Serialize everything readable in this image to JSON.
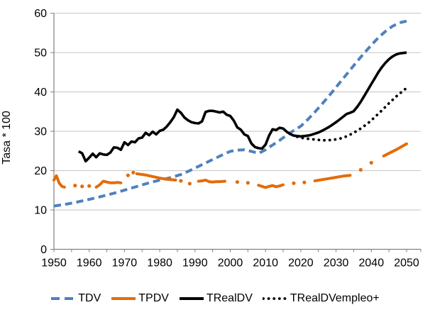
{
  "chart_data": {
    "type": "line",
    "title": "",
    "xlabel": "",
    "ylabel": "Tasa * 100",
    "xlim": [
      1950,
      2054
    ],
    "ylim": [
      0,
      60
    ],
    "grid": "horizontal-gridlines-every-10",
    "legend_position": "bottom",
    "colors": {
      "blue": "#4F81BD",
      "orange": "#E36C09",
      "black": "#000000",
      "grid": "#C3C3C3",
      "axis": "#808080",
      "text": "#000000"
    },
    "y_ticks": [
      "0",
      "10",
      "20",
      "30",
      "40",
      "50",
      "60"
    ],
    "x_ticks": [
      "1950",
      "1960",
      "1970",
      "1980",
      "1990",
      "2000",
      "2010",
      "2020",
      "2030",
      "2040",
      "2050"
    ],
    "series": [
      {
        "name": "TDV",
        "color": "#4F81BD",
        "style": "dashed",
        "width": 4,
        "points": [
          [
            1950,
            11.0
          ],
          [
            1953,
            11.4
          ],
          [
            1956,
            11.9
          ],
          [
            1959,
            12.5
          ],
          [
            1962,
            13.1
          ],
          [
            1965,
            13.8
          ],
          [
            1968,
            14.5
          ],
          [
            1971,
            15.3
          ],
          [
            1974,
            16.1
          ],
          [
            1977,
            16.9
          ],
          [
            1980,
            17.6
          ],
          [
            1983,
            18.2
          ],
          [
            1986,
            19.0
          ],
          [
            1989,
            20.2
          ],
          [
            1992,
            21.5
          ],
          [
            1995,
            22.8
          ],
          [
            1998,
            24.1
          ],
          [
            2000,
            24.9
          ],
          [
            2002,
            25.2
          ],
          [
            2004,
            25.3
          ],
          [
            2006,
            24.9
          ],
          [
            2008,
            24.4
          ],
          [
            2010,
            25.3
          ],
          [
            2012,
            26.5
          ],
          [
            2014,
            27.7
          ],
          [
            2016,
            29.0
          ],
          [
            2018,
            30.2
          ],
          [
            2020,
            31.3
          ],
          [
            2022,
            33.0
          ],
          [
            2024,
            34.9
          ],
          [
            2026,
            36.9
          ],
          [
            2028,
            39.0
          ],
          [
            2030,
            41.2
          ],
          [
            2032,
            43.4
          ],
          [
            2034,
            45.6
          ],
          [
            2036,
            47.8
          ],
          [
            2038,
            49.9
          ],
          [
            2040,
            51.9
          ],
          [
            2042,
            53.8
          ],
          [
            2044,
            55.4
          ],
          [
            2046,
            56.7
          ],
          [
            2048,
            57.6
          ],
          [
            2050,
            58.0
          ]
        ]
      },
      {
        "name": "TPDV",
        "color": "#E36C09",
        "style": "segments-with-dots",
        "width": 4,
        "segments": [
          [
            [
              1950,
              17.6
            ],
            [
              1950.7,
              18.7
            ],
            [
              1951.5,
              16.8
            ],
            [
              1952.3,
              16.0
            ],
            [
              1953,
              15.8
            ]
          ],
          [
            [
              1962,
              15.8
            ],
            [
              1963,
              16.4
            ],
            [
              1964,
              17.3
            ],
            [
              1965,
              17.1
            ],
            [
              1966,
              16.9
            ],
            [
              1967,
              16.9
            ],
            [
              1968,
              17.0
            ],
            [
              1969,
              16.9
            ]
          ],
          [
            [
              1973.5,
              19.2
            ],
            [
              1976,
              18.9
            ],
            [
              1978,
              18.5
            ],
            [
              1980,
              18.1
            ],
            [
              1982,
              17.8
            ],
            [
              1984.5,
              17.6
            ]
          ],
          [
            [
              1991,
              17.3
            ],
            [
              1992,
              17.4
            ],
            [
              1993,
              17.6
            ],
            [
              1994,
              17.2
            ],
            [
              1995,
              17.1
            ],
            [
              1996,
              17.2
            ],
            [
              1997,
              17.2
            ],
            [
              1998.5,
              17.3
            ]
          ],
          [
            [
              2008,
              16.3
            ],
            [
              2009,
              16.0
            ],
            [
              2010,
              15.7
            ],
            [
              2011,
              16.0
            ],
            [
              2012,
              16.2
            ],
            [
              2013,
              15.9
            ],
            [
              2014,
              16.1
            ],
            [
              2015,
              16.4
            ]
          ],
          [
            [
              2024,
              17.4
            ],
            [
              2026,
              17.7
            ],
            [
              2028,
              18.0
            ],
            [
              2030,
              18.3
            ],
            [
              2032,
              18.6
            ],
            [
              2034,
              18.8
            ]
          ],
          [
            [
              2043.5,
              23.7
            ],
            [
              2045,
              24.4
            ],
            [
              2047,
              25.3
            ],
            [
              2050,
              26.8
            ]
          ]
        ],
        "dots": [
          [
            1956,
            16.2
          ],
          [
            1958,
            16.0
          ],
          [
            1960,
            16.1
          ],
          [
            1971,
            18.8
          ],
          [
            1972.5,
            19.5
          ],
          [
            1986,
            17.4
          ],
          [
            1988.5,
            16.7
          ],
          [
            2002,
            17.1
          ],
          [
            2005,
            16.9
          ],
          [
            2018,
            16.8
          ],
          [
            2021,
            17.0
          ],
          [
            2037,
            20.2
          ],
          [
            2040,
            22.0
          ]
        ]
      },
      {
        "name": "TRealDV",
        "color": "#000000",
        "style": "solid",
        "width": 3.6,
        "points": [
          [
            1957,
            24.9
          ],
          [
            1958,
            24.4
          ],
          [
            1959,
            22.4
          ],
          [
            1960,
            23.3
          ],
          [
            1961,
            24.3
          ],
          [
            1962,
            23.4
          ],
          [
            1963,
            24.4
          ],
          [
            1964,
            24.1
          ],
          [
            1965,
            24.0
          ],
          [
            1966,
            24.6
          ],
          [
            1967,
            25.9
          ],
          [
            1968,
            25.8
          ],
          [
            1969,
            25.3
          ],
          [
            1970,
            27.2
          ],
          [
            1971,
            26.5
          ],
          [
            1972,
            27.4
          ],
          [
            1973,
            27.2
          ],
          [
            1974,
            28.2
          ],
          [
            1975,
            28.4
          ],
          [
            1976,
            29.6
          ],
          [
            1977,
            29.0
          ],
          [
            1978,
            29.9
          ],
          [
            1979,
            29.2
          ],
          [
            1980,
            30.1
          ],
          [
            1981,
            30.4
          ],
          [
            1982,
            31.2
          ],
          [
            1983,
            32.3
          ],
          [
            1984,
            33.6
          ],
          [
            1985,
            35.5
          ],
          [
            1986,
            34.7
          ],
          [
            1987,
            33.5
          ],
          [
            1988,
            32.8
          ],
          [
            1989,
            32.3
          ],
          [
            1990,
            32.1
          ],
          [
            1991,
            32.0
          ],
          [
            1992,
            32.5
          ],
          [
            1993,
            34.9
          ],
          [
            1994,
            35.2
          ],
          [
            1995,
            35.2
          ],
          [
            1996,
            35.0
          ],
          [
            1997,
            34.8
          ],
          [
            1998,
            35.0
          ],
          [
            1999,
            34.2
          ],
          [
            2000,
            33.9
          ],
          [
            2001,
            32.7
          ],
          [
            2002,
            31.0
          ],
          [
            2003,
            30.4
          ],
          [
            2004,
            29.2
          ],
          [
            2005,
            28.8
          ],
          [
            2006,
            26.9
          ],
          [
            2007,
            26.0
          ],
          [
            2008,
            25.7
          ],
          [
            2009,
            25.6
          ],
          [
            2010,
            26.6
          ],
          [
            2011,
            28.9
          ],
          [
            2012,
            30.5
          ],
          [
            2013,
            30.3
          ],
          [
            2014,
            30.9
          ],
          [
            2015,
            30.7
          ],
          [
            2016,
            29.9
          ],
          [
            2017,
            29.3
          ],
          [
            2018,
            28.9
          ],
          [
            2019,
            28.8
          ],
          [
            2020,
            28.7
          ],
          [
            2021,
            28.8
          ],
          [
            2022,
            28.9
          ],
          [
            2023,
            29.1
          ],
          [
            2024,
            29.4
          ],
          [
            2025,
            29.7
          ],
          [
            2026,
            30.1
          ],
          [
            2027,
            30.6
          ],
          [
            2028,
            31.1
          ],
          [
            2029,
            31.7
          ],
          [
            2030,
            32.3
          ],
          [
            2031,
            33.0
          ],
          [
            2032,
            33.7
          ],
          [
            2033,
            34.4
          ],
          [
            2034,
            34.7
          ],
          [
            2035,
            35.1
          ],
          [
            2036,
            36.2
          ],
          [
            2037,
            37.5
          ],
          [
            2038,
            39.0
          ],
          [
            2039,
            40.5
          ],
          [
            2040,
            42.0
          ],
          [
            2041,
            43.5
          ],
          [
            2042,
            45.0
          ],
          [
            2043,
            46.3
          ],
          [
            2044,
            47.4
          ],
          [
            2045,
            48.3
          ],
          [
            2046,
            49.0
          ],
          [
            2047,
            49.5
          ],
          [
            2048,
            49.8
          ],
          [
            2049,
            49.9
          ],
          [
            2050,
            50.0
          ]
        ]
      },
      {
        "name": "TRealDVempleo+",
        "color": "#000000",
        "style": "dotted",
        "width": 3.8,
        "points": [
          [
            2019,
            28.6
          ],
          [
            2021,
            28.2
          ],
          [
            2023,
            28.0
          ],
          [
            2025,
            27.8
          ],
          [
            2027,
            27.7
          ],
          [
            2029,
            27.8
          ],
          [
            2031,
            28.1
          ],
          [
            2033,
            28.7
          ],
          [
            2035,
            29.6
          ],
          [
            2037,
            30.7
          ],
          [
            2039,
            32.0
          ],
          [
            2041,
            33.6
          ],
          [
            2043,
            35.3
          ],
          [
            2045,
            37.1
          ],
          [
            2047,
            38.8
          ],
          [
            2049,
            40.3
          ],
          [
            2050,
            41.0
          ]
        ]
      }
    ]
  },
  "legend": {
    "items": [
      {
        "label": "TDV",
        "style": "dashed",
        "color": "#4F81BD"
      },
      {
        "label": "TPDV",
        "style": "solid",
        "color": "#E36C09"
      },
      {
        "label": "TRealDV",
        "style": "solid",
        "color": "#000000"
      },
      {
        "label": "TRealDVempleo+",
        "style": "dotted",
        "color": "#000000"
      }
    ]
  }
}
